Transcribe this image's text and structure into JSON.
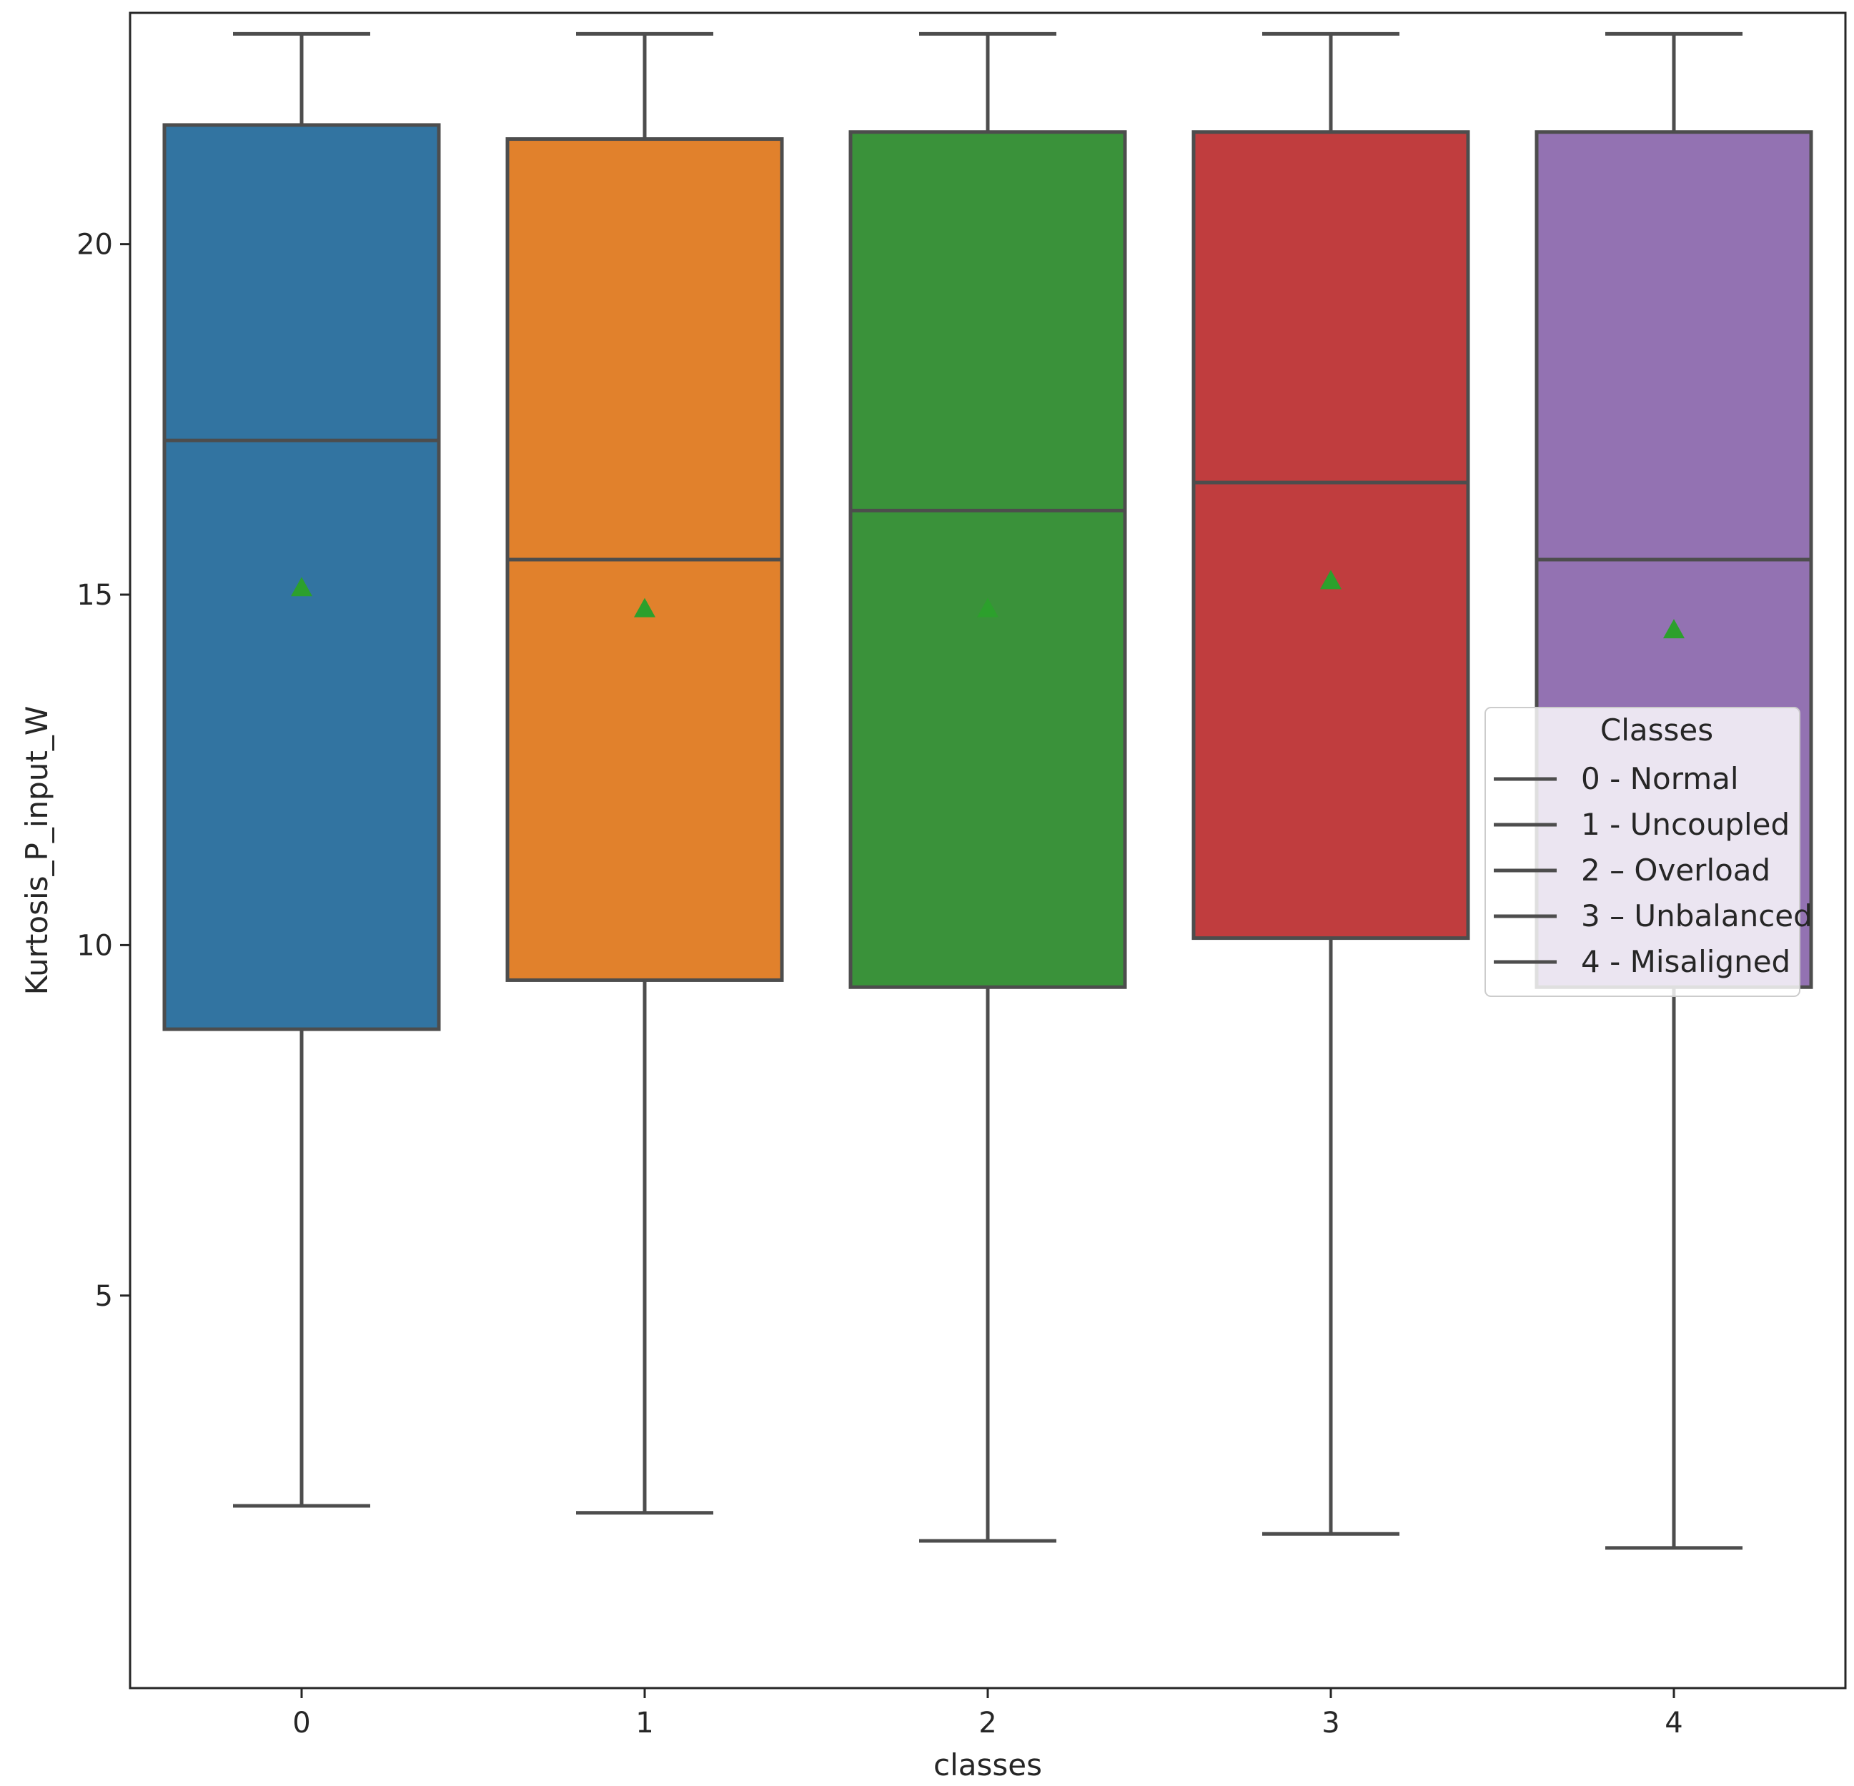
{
  "chart_data": {
    "type": "box",
    "xlabel": "classes",
    "ylabel": "Kurtosis_P_input_W",
    "ylim": [
      -0.6,
      23.3
    ],
    "yticks": [
      5,
      10,
      15,
      20
    ],
    "grid": false,
    "categories": [
      "0",
      "1",
      "2",
      "3",
      "4"
    ],
    "boxes": [
      {
        "category": "0",
        "whisker_low": 2.0,
        "q1": 8.8,
        "median": 17.2,
        "q3": 21.7,
        "whisker_high": 23.0,
        "mean": 15.1,
        "color": "#3274a1"
      },
      {
        "category": "1",
        "whisker_low": 1.9,
        "q1": 9.5,
        "median": 15.5,
        "q3": 21.5,
        "whisker_high": 23.0,
        "mean": 14.8,
        "color": "#e1812c"
      },
      {
        "category": "2",
        "whisker_low": 1.5,
        "q1": 9.4,
        "median": 16.2,
        "q3": 21.6,
        "whisker_high": 23.0,
        "mean": 14.8,
        "color": "#3a923a"
      },
      {
        "category": "3",
        "whisker_low": 1.6,
        "q1": 10.1,
        "median": 16.6,
        "q3": 21.6,
        "whisker_high": 23.0,
        "mean": 15.2,
        "color": "#c03d3e"
      },
      {
        "category": "4",
        "whisker_low": 1.4,
        "q1": 9.4,
        "median": 15.5,
        "q3": 21.6,
        "whisker_high": 23.0,
        "mean": 14.5,
        "color": "#9372b2"
      }
    ],
    "mean_marker_color": "#2ca02c",
    "legend": {
      "title": "Classes",
      "position": "center-right",
      "entries": [
        "0 - Normal",
        "1 - Uncoupled",
        "2 – Overload",
        "3 – Unbalanced",
        "4 - Misaligned"
      ]
    }
  }
}
